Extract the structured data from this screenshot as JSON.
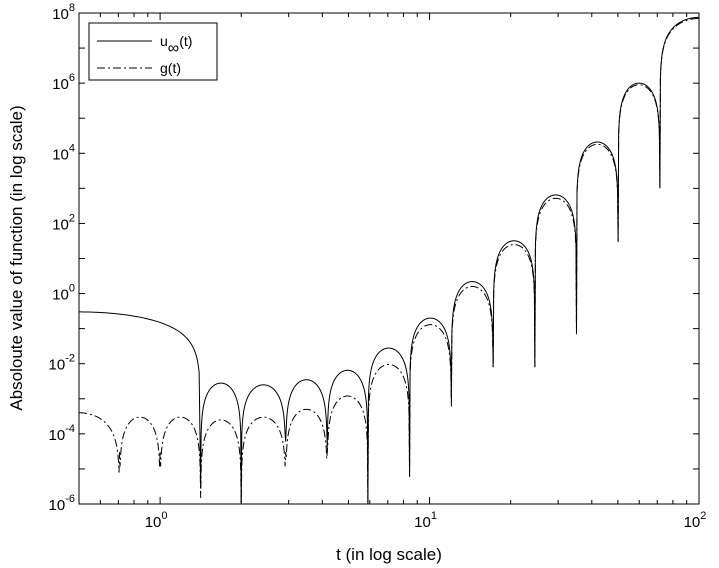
{
  "chart_data": {
    "type": "line",
    "xlabel": "t (in log scale)",
    "ylabel": "Absoloute value of function (in log scale)",
    "xscale": "log",
    "yscale": "log",
    "xlim": [
      0.5,
      100
    ],
    "ylim": [
      1e-06,
      100000000.0
    ],
    "grid": false,
    "legend_position": "top-left",
    "x_ticks": [
      {
        "base": "10",
        "exp": "0",
        "value": 1
      },
      {
        "base": "10",
        "exp": "1",
        "value": 10
      },
      {
        "base": "10",
        "exp": "2",
        "value": 100
      }
    ],
    "y_ticks": [
      {
        "base": "10",
        "exp": "8",
        "value": 100000000.0
      },
      {
        "base": "10",
        "exp": "6",
        "value": 1000000.0
      },
      {
        "base": "10",
        "exp": "4",
        "value": 10000.0
      },
      {
        "base": "10",
        "exp": "2",
        "value": 100.0
      },
      {
        "base": "10",
        "exp": "0",
        "value": 1
      },
      {
        "base": "10",
        "exp": "-2",
        "value": 0.01
      },
      {
        "base": "10",
        "exp": "-4",
        "value": 0.0001
      },
      {
        "base": "10",
        "exp": "-6",
        "value": 1e-06
      }
    ],
    "series": [
      {
        "name": "u∞(t)",
        "legend_main": "u",
        "legend_sub": "∞",
        "legend_tail": "(t)",
        "style": "solid",
        "color": "#000000",
        "lobes": [
          {
            "x0": 0.5,
            "x1": 1.414,
            "peak": 0.3,
            "left_open": true
          },
          {
            "x0": 1.414,
            "x1": 2.0,
            "peak": 0.0028
          },
          {
            "x0": 2.0,
            "x1": 2.924,
            "peak": 0.0025
          },
          {
            "x0": 2.924,
            "x1": 4.172,
            "peak": 0.0035
          },
          {
            "x0": 4.172,
            "x1": 5.904,
            "peak": 0.0065
          },
          {
            "x0": 5.904,
            "x1": 8.43,
            "peak": 0.028
          },
          {
            "x0": 8.43,
            "x1": 12.05,
            "peak": 0.2
          },
          {
            "x0": 12.05,
            "x1": 17.22,
            "peak": 2.2
          },
          {
            "x0": 17.22,
            "x1": 24.6,
            "peak": 32
          },
          {
            "x0": 24.6,
            "x1": 35.1,
            "peak": 650
          },
          {
            "x0": 35.1,
            "x1": 50.1,
            "peak": 21000
          },
          {
            "x0": 50.1,
            "x1": 71.6,
            "peak": 1000000
          },
          {
            "x0": 71.6,
            "x1": 100,
            "peak": 75000000,
            "right_open": true
          }
        ],
        "zeros": [
          {
            "x": 1.414,
            "depth": 3e-06
          },
          {
            "x": 2.0,
            "depth": 1e-06
          },
          {
            "x": 2.924,
            "depth": 6e-05
          },
          {
            "x": 4.172,
            "depth": 4e-05
          },
          {
            "x": 5.904,
            "depth": 1e-06
          },
          {
            "x": 8.43,
            "depth": 6e-06
          },
          {
            "x": 12.05,
            "depth": 0.0009
          },
          {
            "x": 17.22,
            "depth": 0.008
          },
          {
            "x": 24.6,
            "depth": 0.008
          },
          {
            "x": 35.1,
            "depth": 0.07
          },
          {
            "x": 50.1,
            "depth": 30
          },
          {
            "x": 71.6,
            "depth": 1000
          }
        ]
      },
      {
        "name": "g(t)",
        "style": "dashdot",
        "color": "#000000",
        "lobes": [
          {
            "x0": 0.5,
            "x1": 0.707,
            "peak": 0.0004,
            "left_open": true
          },
          {
            "x0": 0.707,
            "x1": 1.0,
            "peak": 0.0003
          },
          {
            "x0": 1.0,
            "x1": 1.414,
            "peak": 0.0003
          },
          {
            "x0": 1.414,
            "x1": 2.0,
            "peak": 0.00025
          },
          {
            "x0": 2.0,
            "x1": 2.924,
            "peak": 0.0003
          },
          {
            "x0": 2.924,
            "x1": 4.172,
            "peak": 0.0005
          },
          {
            "x0": 4.172,
            "x1": 5.904,
            "peak": 0.0012
          },
          {
            "x0": 5.904,
            "x1": 8.43,
            "peak": 0.0095
          },
          {
            "x0": 8.43,
            "x1": 12.05,
            "peak": 0.13
          },
          {
            "x0": 12.05,
            "x1": 17.22,
            "peak": 1.6
          },
          {
            "x0": 17.22,
            "x1": 24.6,
            "peak": 25
          },
          {
            "x0": 24.6,
            "x1": 35.1,
            "peak": 520
          },
          {
            "x0": 35.1,
            "x1": 50.1,
            "peak": 18000
          },
          {
            "x0": 50.1,
            "x1": 71.6,
            "peak": 900000
          },
          {
            "x0": 71.6,
            "x1": 100,
            "peak": 70000000,
            "right_open": true
          }
        ],
        "zeros": [
          {
            "x": 0.707,
            "depth": 3e-05
          },
          {
            "x": 1.0,
            "depth": 3e-05
          },
          {
            "x": 1.414,
            "depth": 1.5e-06
          },
          {
            "x": 2.0,
            "depth": 1e-06
          },
          {
            "x": 2.924,
            "depth": 3e-05
          },
          {
            "x": 4.172,
            "depth": 3e-05
          },
          {
            "x": 5.904,
            "depth": 1e-06
          },
          {
            "x": 8.43,
            "depth": 6e-06
          },
          {
            "x": 12.05,
            "depth": 0.0006
          },
          {
            "x": 17.22,
            "depth": 0.008
          },
          {
            "x": 24.6,
            "depth": 0.008
          },
          {
            "x": 35.1,
            "depth": 0.07
          },
          {
            "x": 50.1,
            "depth": 30
          },
          {
            "x": 71.6,
            "depth": 1000
          }
        ]
      }
    ]
  }
}
